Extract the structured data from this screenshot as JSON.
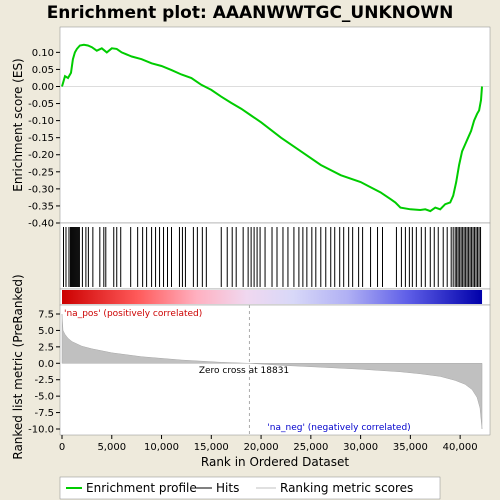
{
  "chart_data": {
    "type": "line",
    "title": "Enrichment plot: AAANWWTGC_UNKNOWN",
    "xlabel": "Rank in Ordered Dataset",
    "ylabel_top": "Enrichment score (ES)",
    "ylabel_bottom": "Ranked list metric (PreRanked)",
    "x_range": [
      0,
      43000
    ],
    "x_ticks": [
      0,
      5000,
      10000,
      15000,
      20000,
      25000,
      30000,
      35000,
      40000
    ],
    "x_tick_labels": [
      "0",
      "5,000",
      "10,000",
      "15,000",
      "20,000",
      "25,000",
      "30,000",
      "35,000",
      "40,000"
    ],
    "es_range": [
      -0.4,
      0.15
    ],
    "es_ticks": [
      0.1,
      0.05,
      0.0,
      -0.05,
      -0.1,
      -0.15,
      -0.2,
      -0.25,
      -0.3,
      -0.35,
      -0.4
    ],
    "es_tick_labels": [
      "0.10",
      "0.05",
      "0.00",
      "-0.05",
      "-0.10",
      "-0.15",
      "-0.20",
      "-0.25",
      "-0.30",
      "-0.35",
      "-0.40"
    ],
    "metric_range": [
      -10.5,
      8
    ],
    "metric_ticks": [
      7.5,
      5.0,
      2.5,
      0.0,
      -2.5,
      -5.0,
      -7.5,
      -10.0
    ],
    "metric_tick_labels": [
      "7.5",
      "5.0",
      "2.5",
      "0.0",
      "-2.5",
      "-5.0",
      "-7.5",
      "-10.0"
    ],
    "enrichment_profile": {
      "name": "Enrichment profile",
      "color": "#00cc00",
      "x": [
        0,
        300,
        600,
        900,
        1100,
        1300,
        1500,
        1800,
        2200,
        2600,
        3000,
        3500,
        4000,
        4500,
        5000,
        5500,
        6000,
        7000,
        8000,
        9000,
        10000,
        11000,
        12000,
        13000,
        14000,
        15000,
        16000,
        17000,
        18000,
        19000,
        20000,
        22000,
        24000,
        26000,
        28000,
        30000,
        31000,
        32000,
        33000,
        33500,
        34000,
        35000,
        36000,
        36500,
        37000,
        37500,
        38000,
        38500,
        39000,
        39300,
        39600,
        39900,
        40200,
        40500,
        40800,
        41100,
        41400,
        41700,
        41900,
        42100,
        42200
      ],
      "y": [
        0.0,
        0.03,
        0.025,
        0.04,
        0.08,
        0.1,
        0.11,
        0.12,
        0.122,
        0.12,
        0.115,
        0.105,
        0.112,
        0.1,
        0.112,
        0.11,
        0.1,
        0.088,
        0.08,
        0.068,
        0.06,
        0.048,
        0.035,
        0.025,
        0.005,
        -0.01,
        -0.03,
        -0.048,
        -0.065,
        -0.085,
        -0.105,
        -0.15,
        -0.19,
        -0.23,
        -0.26,
        -0.28,
        -0.295,
        -0.31,
        -0.33,
        -0.34,
        -0.355,
        -0.36,
        -0.362,
        -0.36,
        -0.365,
        -0.355,
        -0.36,
        -0.345,
        -0.34,
        -0.32,
        -0.28,
        -0.23,
        -0.19,
        -0.17,
        -0.15,
        -0.13,
        -0.1,
        -0.08,
        -0.07,
        -0.04,
        0.0
      ]
    },
    "hits_label": "Hits",
    "hit_positions": [
      150,
      400,
      700,
      850,
      950,
      1050,
      1150,
      1250,
      1350,
      1450,
      1550,
      1650,
      1750,
      2050,
      2400,
      2650,
      3100,
      3800,
      4200,
      4400,
      5200,
      5500,
      5900,
      6900,
      7600,
      8100,
      8500,
      9000,
      9400,
      9800,
      10200,
      10600,
      11000,
      11800,
      12100,
      12400,
      13200,
      13600,
      14100,
      14500,
      16000,
      16600,
      17100,
      17500,
      18200,
      18700,
      19000,
      19300,
      19600,
      19900,
      20400,
      21100,
      21600,
      22200,
      22700,
      23300,
      23800,
      24200,
      24600,
      25100,
      25500,
      26000,
      26500,
      27000,
      27400,
      27900,
      28300,
      28800,
      29200,
      29800,
      30200,
      31000,
      31700,
      32200,
      33600,
      34100,
      34500,
      34900,
      35200,
      35600,
      36100,
      36500,
      37000,
      37400,
      37800,
      38300,
      38700,
      39100,
      39300,
      39500,
      39650,
      39800,
      39950,
      40100,
      40250,
      40400,
      40550,
      40700,
      40850,
      41000,
      41150,
      41300,
      41450,
      41600,
      41750,
      41900,
      42050
    ],
    "ranking_metric_label": "Ranking metric scores",
    "metric_curve": {
      "x": [
        0,
        100,
        300,
        600,
        1000,
        2000,
        3000,
        5000,
        8000,
        12000,
        16000,
        18831,
        22000,
        26000,
        30000,
        34000,
        36000,
        38000,
        39500,
        40500,
        41200,
        41700,
        42000,
        42200
      ],
      "y": [
        7.5,
        5.0,
        4.4,
        3.8,
        3.3,
        2.6,
        2.2,
        1.6,
        1.0,
        0.5,
        0.15,
        0.0,
        -0.3,
        -0.6,
        -0.9,
        -1.3,
        -1.6,
        -2.0,
        -2.6,
        -3.2,
        -4.0,
        -5.2,
        -6.8,
        -10.0
      ]
    },
    "zero_cross_label": "Zero cross at 18831",
    "zero_cross_x": 18831,
    "pos_label": "'na_pos' (positively correlated)",
    "neg_label": "'na_neg' (negatively correlated)",
    "legend": [
      {
        "label": "Enrichment profile",
        "color": "#00cc00"
      },
      {
        "label": "Hits",
        "color": "#000000"
      },
      {
        "label": "Ranking metric scores",
        "color": "#c0c0c0"
      }
    ],
    "colors": {
      "pos_text": "#cc0000",
      "neg_text": "#0000cc",
      "background": "#eeeadc"
    }
  }
}
